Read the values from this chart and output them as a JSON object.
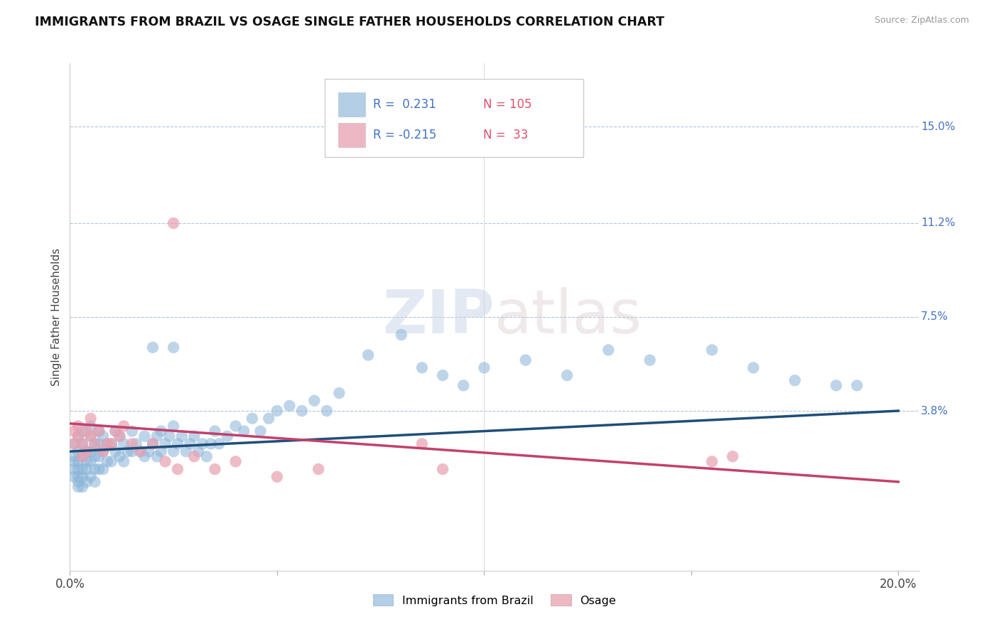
{
  "title": "IMMIGRANTS FROM BRAZIL VS OSAGE SINGLE FATHER HOUSEHOLDS CORRELATION CHART",
  "source": "Source: ZipAtlas.com",
  "ylabel": "Single Father Households",
  "xlim": [
    0.0,
    0.205
  ],
  "ylim": [
    -0.025,
    0.175
  ],
  "ytick_vals": [
    0.038,
    0.075,
    0.112,
    0.15
  ],
  "ytick_labels": [
    "3.8%",
    "7.5%",
    "11.2%",
    "15.0%"
  ],
  "xtick_vals": [
    0.0,
    0.05,
    0.1,
    0.15,
    0.2
  ],
  "xtick_labels": [
    "0.0%",
    "",
    "",
    "",
    "20.0%"
  ],
  "grid_color": "#b0c4de",
  "blue_scatter_color": "#8ab4d8",
  "pink_scatter_color": "#e8a0b0",
  "blue_line_color": "#1f4e79",
  "pink_line_color": "#c2416e",
  "legend_R1": "R =  0.231",
  "legend_N1": "N = 105",
  "legend_R2": "R = -0.215",
  "legend_N2": "N =  33",
  "legend_label1": "Immigrants from Brazil",
  "legend_label2": "Osage",
  "watermark_zip": "ZIP",
  "watermark_atlas": "atlas",
  "brazil_line_x0": 0.0,
  "brazil_line_x1": 0.2,
  "brazil_line_y0": 0.022,
  "brazil_line_y1": 0.038,
  "osage_line_x0": 0.0,
  "osage_line_x1": 0.2,
  "osage_line_y0": 0.033,
  "osage_line_y1": 0.01,
  "brazil_x": [
    0.001,
    0.001,
    0.001,
    0.001,
    0.001,
    0.002,
    0.002,
    0.002,
    0.002,
    0.002,
    0.002,
    0.002,
    0.003,
    0.003,
    0.003,
    0.003,
    0.003,
    0.003,
    0.004,
    0.004,
    0.004,
    0.004,
    0.005,
    0.005,
    0.005,
    0.005,
    0.005,
    0.006,
    0.006,
    0.006,
    0.006,
    0.007,
    0.007,
    0.007,
    0.007,
    0.008,
    0.008,
    0.008,
    0.009,
    0.009,
    0.01,
    0.01,
    0.011,
    0.011,
    0.012,
    0.012,
    0.013,
    0.013,
    0.014,
    0.015,
    0.015,
    0.016,
    0.017,
    0.018,
    0.018,
    0.019,
    0.02,
    0.021,
    0.021,
    0.022,
    0.022,
    0.023,
    0.024,
    0.025,
    0.025,
    0.026,
    0.027,
    0.028,
    0.029,
    0.03,
    0.031,
    0.032,
    0.033,
    0.034,
    0.035,
    0.036,
    0.038,
    0.04,
    0.042,
    0.044,
    0.046,
    0.048,
    0.05,
    0.053,
    0.056,
    0.059,
    0.062,
    0.065,
    0.072,
    0.08,
    0.085,
    0.09,
    0.095,
    0.1,
    0.11,
    0.12,
    0.13,
    0.14,
    0.155,
    0.165,
    0.175,
    0.185,
    0.19,
    0.02,
    0.025
  ],
  "brazil_y": [
    0.025,
    0.02,
    0.018,
    0.015,
    0.012,
    0.028,
    0.022,
    0.018,
    0.015,
    0.012,
    0.01,
    0.008,
    0.03,
    0.025,
    0.02,
    0.015,
    0.012,
    0.008,
    0.022,
    0.018,
    0.015,
    0.01,
    0.032,
    0.028,
    0.022,
    0.018,
    0.012,
    0.025,
    0.02,
    0.015,
    0.01,
    0.03,
    0.025,
    0.02,
    0.015,
    0.028,
    0.022,
    0.015,
    0.025,
    0.018,
    0.025,
    0.018,
    0.03,
    0.022,
    0.028,
    0.02,
    0.025,
    0.018,
    0.022,
    0.03,
    0.022,
    0.025,
    0.022,
    0.028,
    0.02,
    0.022,
    0.025,
    0.028,
    0.02,
    0.03,
    0.022,
    0.025,
    0.028,
    0.032,
    0.022,
    0.025,
    0.028,
    0.022,
    0.025,
    0.028,
    0.022,
    0.025,
    0.02,
    0.025,
    0.03,
    0.025,
    0.028,
    0.032,
    0.03,
    0.035,
    0.03,
    0.035,
    0.038,
    0.04,
    0.038,
    0.042,
    0.038,
    0.045,
    0.06,
    0.068,
    0.055,
    0.052,
    0.048,
    0.055,
    0.058,
    0.052,
    0.062,
    0.058,
    0.062,
    0.055,
    0.05,
    0.048,
    0.048,
    0.063,
    0.063
  ],
  "osage_x": [
    0.001,
    0.001,
    0.002,
    0.002,
    0.003,
    0.003,
    0.004,
    0.004,
    0.005,
    0.005,
    0.006,
    0.007,
    0.008,
    0.009,
    0.01,
    0.011,
    0.012,
    0.013,
    0.015,
    0.017,
    0.02,
    0.023,
    0.026,
    0.03,
    0.035,
    0.04,
    0.05,
    0.06,
    0.085,
    0.09,
    0.025,
    0.155,
    0.16
  ],
  "osage_y": [
    0.03,
    0.025,
    0.032,
    0.028,
    0.025,
    0.02,
    0.03,
    0.022,
    0.028,
    0.035,
    0.025,
    0.03,
    0.022,
    0.025,
    0.025,
    0.03,
    0.028,
    0.032,
    0.025,
    0.022,
    0.025,
    0.018,
    0.015,
    0.02,
    0.015,
    0.018,
    0.012,
    0.015,
    0.025,
    0.015,
    0.112,
    0.018,
    0.02
  ]
}
